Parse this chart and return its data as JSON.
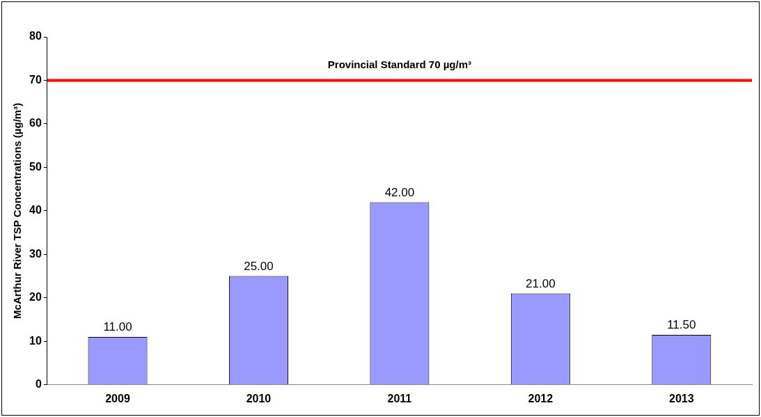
{
  "chart_data": {
    "type": "bar",
    "ylabel": "McArthur River TSP Concentrations (µg/m³)",
    "categories": [
      "2009",
      "2010",
      "2011",
      "2012",
      "2013"
    ],
    "values": [
      11,
      25,
      42,
      21,
      11.5
    ],
    "value_labels": [
      "11.00",
      "25.00",
      "42.00",
      "21.00",
      "11.50"
    ],
    "color": "#9999ff",
    "ylim": [
      0,
      80
    ],
    "yticks": [
      0,
      10,
      20,
      30,
      40,
      50,
      60,
      70,
      80
    ],
    "grid": false,
    "legend": false,
    "ref_lines": [
      {
        "axis": "y",
        "value": 70,
        "label": "Provincial Standard 70 µg/m³",
        "color": "#ff0000"
      }
    ]
  }
}
